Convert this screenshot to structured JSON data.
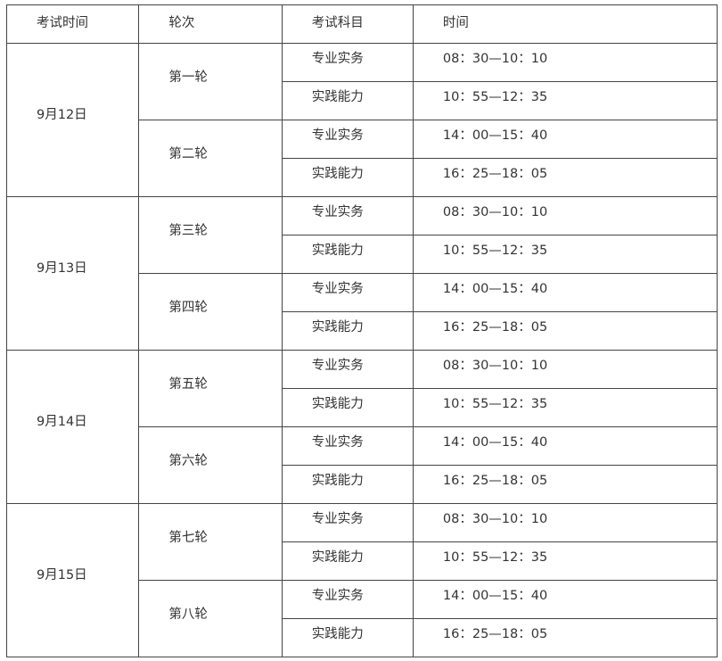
{
  "headers": [
    "考试时间",
    "轮次",
    "考试科目",
    "时间"
  ],
  "days": [
    {
      "date": "9月12日",
      "rounds": [
        {
          "name": "第一轮",
          "sessions": [
            {
              "subject": "专业实务",
              "time": "08：30—10：10"
            },
            {
              "subject": "实践能力",
              "time": "10：55—12：35"
            }
          ]
        },
        {
          "name": "第二轮",
          "sessions": [
            {
              "subject": "专业实务",
              "time": "14：00—15：40"
            },
            {
              "subject": "实践能力",
              "time": "16：25—18：05"
            }
          ]
        }
      ]
    },
    {
      "date": "9月13日",
      "rounds": [
        {
          "name": "第三轮",
          "sessions": [
            {
              "subject": "专业实务",
              "time": "08：30—10：10"
            },
            {
              "subject": "实践能力",
              "time": "10：55—12：35"
            }
          ]
        },
        {
          "name": "第四轮",
          "sessions": [
            {
              "subject": "专业实务",
              "time": "14：00—15：40"
            },
            {
              "subject": "实践能力",
              "time": "16：25—18：05"
            }
          ]
        }
      ]
    },
    {
      "date": "9月14日",
      "rounds": [
        {
          "name": "第五轮",
          "sessions": [
            {
              "subject": "专业实务",
              "time": "08：30—10：10"
            },
            {
              "subject": "实践能力",
              "time": "10：55—12：35"
            }
          ]
        },
        {
          "name": "第六轮",
          "sessions": [
            {
              "subject": "专业实务",
              "time": "14：00—15：40"
            },
            {
              "subject": "实践能力",
              "time": "16：25—18：05"
            }
          ]
        }
      ]
    },
    {
      "date": "9月15日",
      "rounds": [
        {
          "name": "第七轮",
          "sessions": [
            {
              "subject": "专业实务",
              "time": "08：30—10：10"
            },
            {
              "subject": "实践能力",
              "time": "10：55—12：35"
            }
          ]
        },
        {
          "name": "第八轮",
          "sessions": [
            {
              "subject": "专业实务",
              "time": "14：00—15：40"
            },
            {
              "subject": "实践能力",
              "time": "16：25—18：05"
            }
          ]
        }
      ]
    }
  ]
}
